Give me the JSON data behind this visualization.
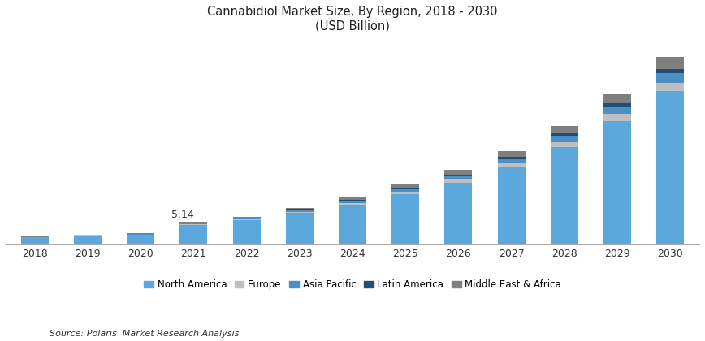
{
  "title_line1": "Cannabidiol Market Size, By Region, 2018 - 2030",
  "title_line2": "(USD Billion)",
  "years": [
    2018,
    2019,
    2020,
    2021,
    2022,
    2023,
    2024,
    2025,
    2026,
    2027,
    2028,
    2029,
    2030
  ],
  "north_america": [
    1.55,
    1.82,
    2.15,
    4.5,
    5.55,
    7.2,
    9.2,
    11.5,
    14.2,
    17.8,
    22.5,
    28.5,
    35.5
  ],
  "europe": [
    0.07,
    0.09,
    0.11,
    0.14,
    0.18,
    0.26,
    0.38,
    0.52,
    0.68,
    0.87,
    1.12,
    1.45,
    1.82
  ],
  "asia_pacific": [
    0.06,
    0.08,
    0.1,
    0.17,
    0.22,
    0.32,
    0.46,
    0.62,
    0.82,
    1.05,
    1.35,
    1.72,
    2.15
  ],
  "latin_america": [
    0.03,
    0.04,
    0.05,
    0.09,
    0.11,
    0.15,
    0.22,
    0.3,
    0.4,
    0.52,
    0.67,
    0.85,
    1.07
  ],
  "middle_east_africa": [
    0.04,
    0.05,
    0.07,
    0.24,
    0.34,
    0.47,
    0.64,
    0.86,
    1.1,
    1.36,
    1.76,
    2.23,
    2.76
  ],
  "colors": {
    "north_america": "#5BA8DC",
    "europe": "#BFBFBF",
    "asia_pacific": "#4A90C4",
    "latin_america": "#1F4E79",
    "middle_east_africa": "#7F7F7F"
  },
  "annotation_year": 2021,
  "annotation_text": "5.14",
  "source_text": "Source: Polaris  Market Research Analysis",
  "legend_labels": [
    "North America",
    "Europe",
    "Asia Pacific",
    "Latin America",
    "Middle East & Africa"
  ],
  "background_color": "#ffffff",
  "ylim_max": 47
}
